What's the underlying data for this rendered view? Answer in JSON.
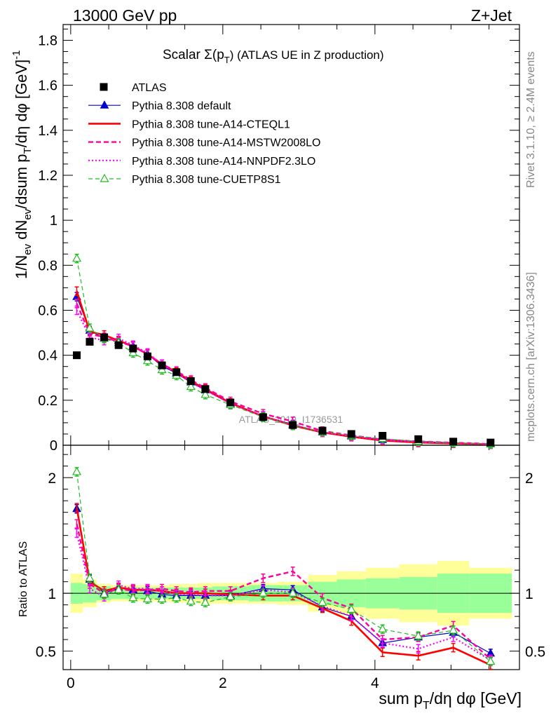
{
  "header": {
    "left": "13000 GeV pp",
    "right": "Z+Jet"
  },
  "side": {
    "top": "Rivet 3.1.10, ≥ 2.4M events",
    "bottom": "mcplots.cern.ch [arXiv:1306.3436]"
  },
  "watermark": "ATLAS_2019_I1736531",
  "plot_title": {
    "main": "Scalar Σ(p",
    "sub": "T",
    "rest": ") (ATLAS UE in Z production)"
  },
  "axes": {
    "ylabel_main": "1/N_ev dN_ev/dsum p_T/dη dφ [GeV]^-1",
    "ylabel_ratio": "Ratio to ATLAS",
    "xlabel": "sum p_T/dη dφ [GeV]"
  },
  "colors": {
    "atlas": "#000000",
    "default": "#0000cc",
    "cteql1": "#ff0000",
    "mstw": "#ff0099",
    "nnpdf": "#ff00ff",
    "cuetp": "#22bb22",
    "band_inner": "#99ff99",
    "band_outer": "#ffff99"
  },
  "chart_data": [
    {
      "type": "line",
      "panel": "main",
      "title": "Scalar Σ(p_T) (ATLAS UE in Z production)",
      "xlabel": "sum p_T/dη dφ [GeV]",
      "ylabel": "1/N_ev dN_ev/dsum p_T/dη dφ [GeV]^-1",
      "xlim": [
        -0.1,
        5.9
      ],
      "ylim": [
        0,
        1.87
      ],
      "x_ticks": [
        0,
        2,
        4
      ],
      "y_ticks": [
        0,
        0.2,
        0.4,
        0.6,
        0.8,
        1,
        1.2,
        1.4,
        1.6,
        1.8
      ],
      "y_tick_labels": [
        "0",
        "0.2",
        "0.4",
        "0.6",
        "0.8",
        "1",
        "1.2",
        "1.4",
        "1.6",
        "1.8"
      ],
      "x": [
        0.08,
        0.25,
        0.44,
        0.63,
        0.82,
        1.01,
        1.2,
        1.39,
        1.58,
        1.77,
        2.1,
        2.53,
        2.92,
        3.31,
        3.69,
        4.1,
        4.57,
        5.03,
        5.52
      ],
      "series": [
        {
          "name": "ATLAS",
          "style": "data",
          "values": [
            0.4,
            0.46,
            0.48,
            0.445,
            0.43,
            0.395,
            0.355,
            0.325,
            0.285,
            0.25,
            0.19,
            0.125,
            0.09,
            0.065,
            0.05,
            0.042,
            0.027,
            0.016,
            0.012
          ]
        },
        {
          "name": "Pythia 8.308 default",
          "style": "default",
          "values": [
            0.66,
            0.51,
            0.475,
            0.465,
            0.44,
            0.405,
            0.352,
            0.32,
            0.28,
            0.245,
            0.185,
            0.13,
            0.092,
            0.058,
            0.04,
            0.024,
            0.017,
            0.011,
            0.006
          ]
        },
        {
          "name": "Pythia 8.308 tune-A14-CTEQL1",
          "style": "cteql1",
          "values": [
            0.685,
            0.505,
            0.49,
            0.465,
            0.44,
            0.405,
            0.36,
            0.325,
            0.285,
            0.25,
            0.188,
            0.128,
            0.088,
            0.057,
            0.038,
            0.021,
            0.012,
            0.0085,
            0.0045
          ]
        },
        {
          "name": "Pythia 8.308 tune-A14-MSTW2008LO",
          "style": "mstw",
          "values": [
            0.63,
            0.495,
            0.48,
            0.46,
            0.44,
            0.405,
            0.36,
            0.33,
            0.29,
            0.255,
            0.195,
            0.14,
            0.106,
            0.063,
            0.044,
            0.025,
            0.017,
            0.0115,
            0.0055
          ]
        },
        {
          "name": "Pythia 8.308 tune-A14-NNPDF2.3LO",
          "style": "nnpdf",
          "values": [
            0.6,
            0.48,
            0.465,
            0.475,
            0.445,
            0.41,
            0.36,
            0.32,
            0.28,
            0.245,
            0.185,
            0.128,
            0.09,
            0.058,
            0.04,
            0.024,
            0.014,
            0.01,
            0.005
          ]
        },
        {
          "name": "Pythia 8.308 tune-CUETP8S1",
          "style": "cuetp",
          "values": [
            0.83,
            0.52,
            0.475,
            0.455,
            0.41,
            0.375,
            0.335,
            0.31,
            0.26,
            0.225,
            0.18,
            0.125,
            0.088,
            0.06,
            0.043,
            0.029,
            0.017,
            0.011,
            0.005
          ]
        }
      ]
    },
    {
      "type": "line",
      "panel": "ratio",
      "ylabel": "Ratio to ATLAS",
      "xlabel": "sum p_T/dη dφ [GeV]",
      "xlim": [
        -0.1,
        5.9
      ],
      "ylim": [
        0.34,
        2.28
      ],
      "x_ticks": [
        0,
        2,
        4
      ],
      "y_ticks": [
        0.5,
        1,
        2
      ],
      "y_tick_labels": [
        "0.5",
        "1",
        "2"
      ],
      "x": [
        0.08,
        0.25,
        0.44,
        0.63,
        0.82,
        1.01,
        1.2,
        1.39,
        1.58,
        1.77,
        2.1,
        2.53,
        2.92,
        3.31,
        3.69,
        4.1,
        4.57,
        5.03,
        5.52
      ],
      "bin_edges": [
        0.0,
        0.16,
        0.34,
        0.53,
        0.72,
        0.91,
        1.1,
        1.29,
        1.48,
        1.67,
        1.86,
        2.34,
        2.72,
        3.12,
        3.5,
        3.88,
        4.32,
        4.82,
        5.24,
        5.8
      ],
      "band_inner": [
        0.09,
        0.08,
        0.06,
        0.05,
        0.05,
        0.05,
        0.05,
        0.05,
        0.05,
        0.05,
        0.06,
        0.07,
        0.07,
        0.1,
        0.12,
        0.13,
        0.14,
        0.17,
        0.17
      ],
      "band_outer": [
        0.17,
        0.12,
        0.08,
        0.07,
        0.07,
        0.07,
        0.07,
        0.08,
        0.08,
        0.09,
        0.09,
        0.09,
        0.1,
        0.16,
        0.19,
        0.22,
        0.25,
        0.28,
        0.22
      ],
      "series": [
        {
          "name": "Pythia 8.308 default",
          "style": "default",
          "values": [
            1.73,
            1.12,
            1.0,
            1.05,
            1.03,
            1.02,
            0.99,
            0.98,
            0.98,
            0.98,
            0.98,
            1.04,
            1.03,
            0.88,
            0.8,
            0.57,
            0.62,
            0.66,
            0.48
          ]
        },
        {
          "name": "Pythia 8.308 tune-A14-CTEQL1",
          "style": "cteql1",
          "values": [
            1.74,
            1.1,
            1.02,
            1.05,
            1.03,
            1.03,
            1.02,
            1.0,
            1.0,
            1.0,
            0.99,
            0.98,
            0.98,
            0.87,
            0.76,
            0.49,
            0.46,
            0.53,
            0.38
          ]
        },
        {
          "name": "Pythia 8.308 tune-A14-MSTW2008LO",
          "style": "mstw",
          "values": [
            1.6,
            1.08,
            1.0,
            1.04,
            1.02,
            1.03,
            1.04,
            1.02,
            1.01,
            1.02,
            1.02,
            1.13,
            1.19,
            0.96,
            0.87,
            0.6,
            0.62,
            0.72,
            0.43
          ]
        },
        {
          "name": "Pythia 8.308 tune-A14-NNPDF2.3LO",
          "style": "nnpdf",
          "values": [
            1.52,
            1.04,
            0.97,
            1.07,
            1.04,
            1.04,
            1.02,
            0.99,
            0.99,
            0.98,
            0.98,
            1.03,
            1.01,
            0.89,
            0.8,
            0.57,
            0.52,
            0.62,
            0.42
          ]
        },
        {
          "name": "Pythia 8.308 tune-CUETP8S1",
          "style": "cuetp",
          "values": [
            2.05,
            1.13,
            0.99,
            1.03,
            0.96,
            0.95,
            0.95,
            0.96,
            0.93,
            0.92,
            0.97,
            1.0,
            1.0,
            0.92,
            0.86,
            0.69,
            0.63,
            0.68,
            0.41
          ]
        }
      ]
    }
  ]
}
